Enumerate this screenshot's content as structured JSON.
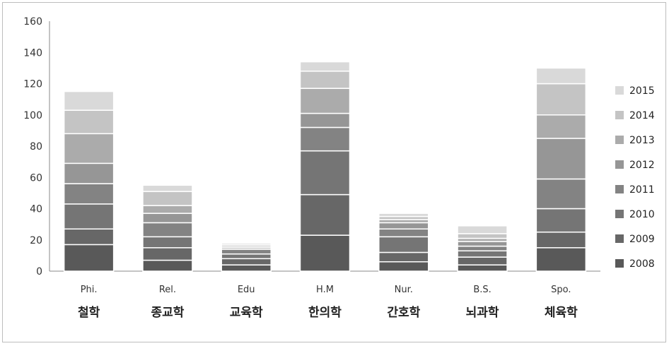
{
  "chart_data": {
    "type": "bar",
    "stacked": true,
    "categories": [
      "Phi.",
      "Rel.",
      "Edu",
      "H.M",
      "Nur.",
      "B.S.",
      "Spo."
    ],
    "categories_korean": [
      "철학",
      "종교학",
      "교육학",
      "한의학",
      "간호학",
      "뇌과학",
      "체육학"
    ],
    "series": [
      {
        "name": "2008",
        "color": "#595959",
        "values": [
          17,
          7,
          4,
          23,
          6,
          4,
          15
        ]
      },
      {
        "name": "2009",
        "color": "#676767",
        "values": [
          10,
          8,
          4,
          26,
          6,
          5,
          10
        ]
      },
      {
        "name": "2010",
        "color": "#757575",
        "values": [
          16,
          7,
          3,
          28,
          10,
          4,
          15
        ]
      },
      {
        "name": "2011",
        "color": "#838383",
        "values": [
          13,
          9,
          3,
          15,
          5,
          3,
          19
        ]
      },
      {
        "name": "2012",
        "color": "#969696",
        "values": [
          13,
          6,
          1,
          9,
          4,
          3,
          26
        ]
      },
      {
        "name": "2013",
        "color": "#ababab",
        "values": [
          19,
          5,
          1,
          16,
          2,
          2,
          15
        ]
      },
      {
        "name": "2014",
        "color": "#c4c4c4",
        "values": [
          15,
          9,
          1,
          11,
          2,
          3,
          20
        ]
      },
      {
        "name": "2015",
        "color": "#d9d9d9",
        "values": [
          12,
          4,
          1,
          6,
          2,
          5,
          10
        ]
      }
    ],
    "ylim": [
      0,
      160
    ],
    "yticks": [
      0,
      20,
      40,
      60,
      80,
      100,
      120,
      140,
      160
    ],
    "grid": false,
    "legend_position": "right",
    "title": "",
    "xlabel": "",
    "ylabel": ""
  }
}
